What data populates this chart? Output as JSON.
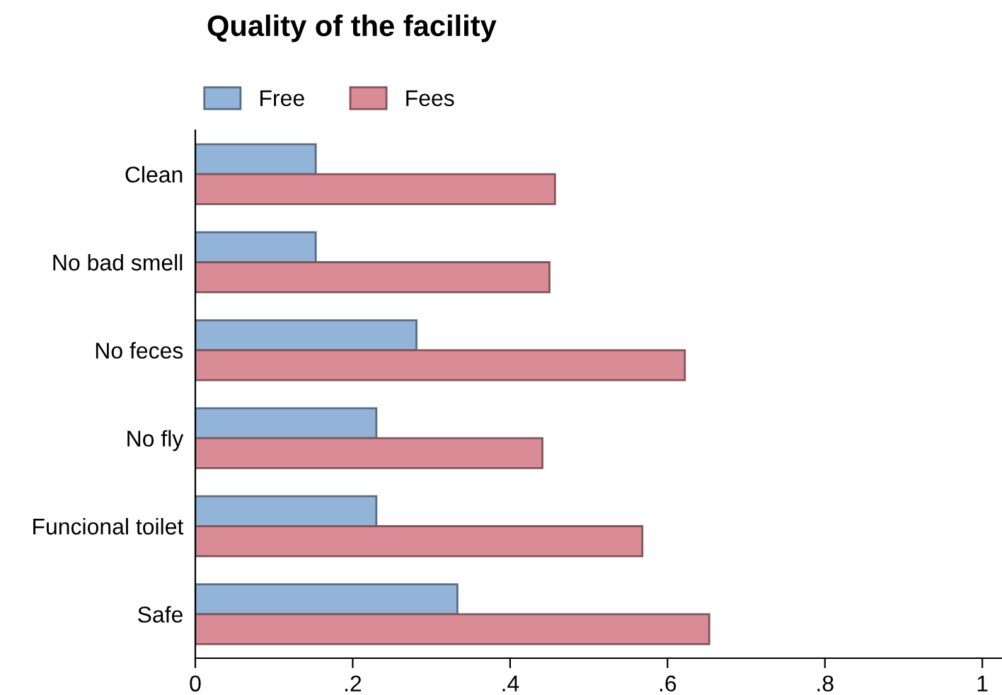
{
  "chart_data": {
    "type": "bar",
    "orientation": "horizontal",
    "title": "Quality of the facility",
    "categories": [
      "Clean",
      "No bad smell",
      "No feces",
      "No fly",
      "Funcional toilet",
      "Safe"
    ],
    "series": [
      {
        "name": "Free",
        "color": "#92b4d9",
        "values": [
          0.153,
          0.153,
          0.281,
          0.23,
          0.23,
          0.333
        ]
      },
      {
        "name": "Fees",
        "color": "#d98c96",
        "values": [
          0.457,
          0.45,
          0.622,
          0.441,
          0.568,
          0.653
        ]
      }
    ],
    "xlim": [
      0,
      1.025
    ],
    "xticks": [
      0,
      {
        "value": 0.2,
        "label": ".2"
      },
      {
        "value": 0.4,
        "label": ".4"
      },
      {
        "value": 0.6,
        "label": ".6"
      },
      {
        "value": 0.8,
        "label": ".8"
      },
      1
    ],
    "grid": false,
    "legend": "top left"
  }
}
